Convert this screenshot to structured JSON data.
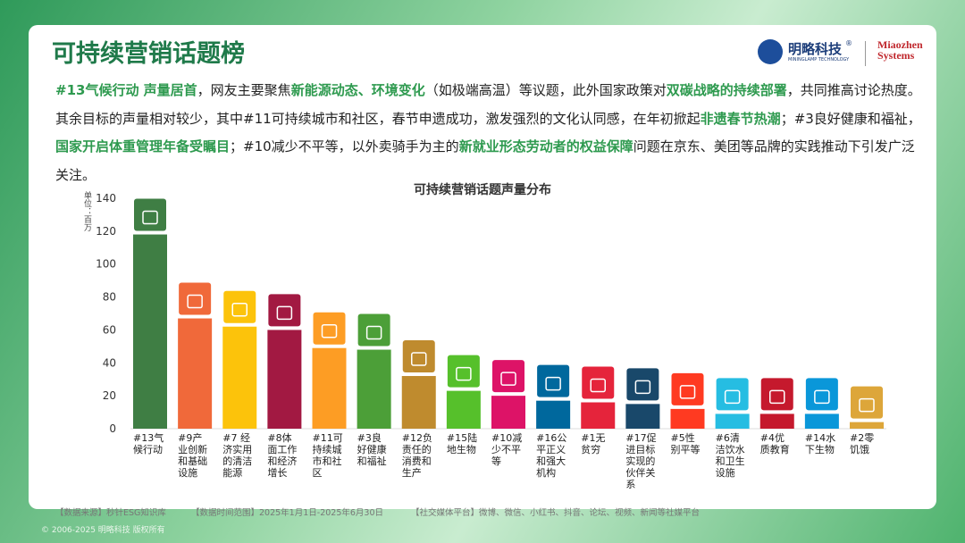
{
  "header": {
    "title": "可持续营销话题榜",
    "logo_cn": "明略科技",
    "logo_mark": "®",
    "logo_en": "MININGLAMP TECHNOLOGY",
    "logo_right": "Miaozhen Systems"
  },
  "paragraph": [
    {
      "text": "#13气候行动 声量居首",
      "highlight": true
    },
    {
      "text": "，网友主要聚焦",
      "highlight": false
    },
    {
      "text": "新能源动态、环境变化",
      "highlight": true
    },
    {
      "text": "（如极端高温）等议题，此外国家政策对",
      "highlight": false
    },
    {
      "text": "双碳战略的持续部署",
      "highlight": true
    },
    {
      "text": "，共同推高讨论热度。其余目标的声量相对较少，其中#11可持续城市和社区，春节申遗成功，激发强烈的文化认同感，在年初掀起",
      "highlight": false
    },
    {
      "text": "非遗春节热潮",
      "highlight": true
    },
    {
      "text": "；#3良好健康和福祉，",
      "highlight": false
    },
    {
      "text": "国家开启体重管理年备受瞩目",
      "highlight": true
    },
    {
      "text": "；#10减少不平等，以外卖骑手为主的",
      "highlight": false
    },
    {
      "text": "新就业形态劳动者的权益保障",
      "highlight": true
    },
    {
      "text": "问题在京东、美团等品牌的实践推动下引发广泛关注。",
      "highlight": false
    }
  ],
  "chart_data": {
    "type": "bar",
    "title": "可持续营销话题声量分布",
    "y_label": "单位：百万",
    "categories": [
      "#13气候行动",
      "#9产业创新和基础设施",
      "#7 经济实用的清洁能源",
      "#8体面工作和经济增长",
      "#11可持续城市和社区",
      "#3良好健康和福祉",
      "#12负责任的消费和生产",
      "#15陆地生物",
      "#10减少不平等",
      "#16公平正义和强大机构",
      "#1无贫穷",
      "#17促进目标实现的伙伴关系",
      "#5性别平等",
      "#6清洁饮水和卫生设施",
      "#4优质教育",
      "#14水下生物",
      "#2零饥饿"
    ],
    "values": [
      118,
      67,
      62,
      60,
      49,
      48,
      32,
      23,
      20,
      17,
      16,
      15,
      12,
      9,
      9,
      9,
      4
    ],
    "colors": [
      "#3f7e44",
      "#f0693a",
      "#fcc30b",
      "#a21942",
      "#fd9d24",
      "#4c9f38",
      "#bf8b2e",
      "#56c02b",
      "#dd1367",
      "#00689d",
      "#e5243b",
      "#19486a",
      "#ff3a21",
      "#26bde2",
      "#c5192d",
      "#0a97d9",
      "#dda63a"
    ],
    "ylim": [
      0,
      140
    ],
    "yticks": [
      0,
      20,
      40,
      60,
      80,
      100,
      120,
      140
    ]
  },
  "footer": {
    "source": "【数据来源】秒针ESG知识库",
    "range": "【数据时间范围】2025年1月1日-2025年6月30日",
    "platforms": "【社交媒体平台】微博、微信、小红书、抖音、论坛、视频、新闻等社媒平台",
    "copyright": "© 2006-2025 明略科技 版权所有"
  }
}
